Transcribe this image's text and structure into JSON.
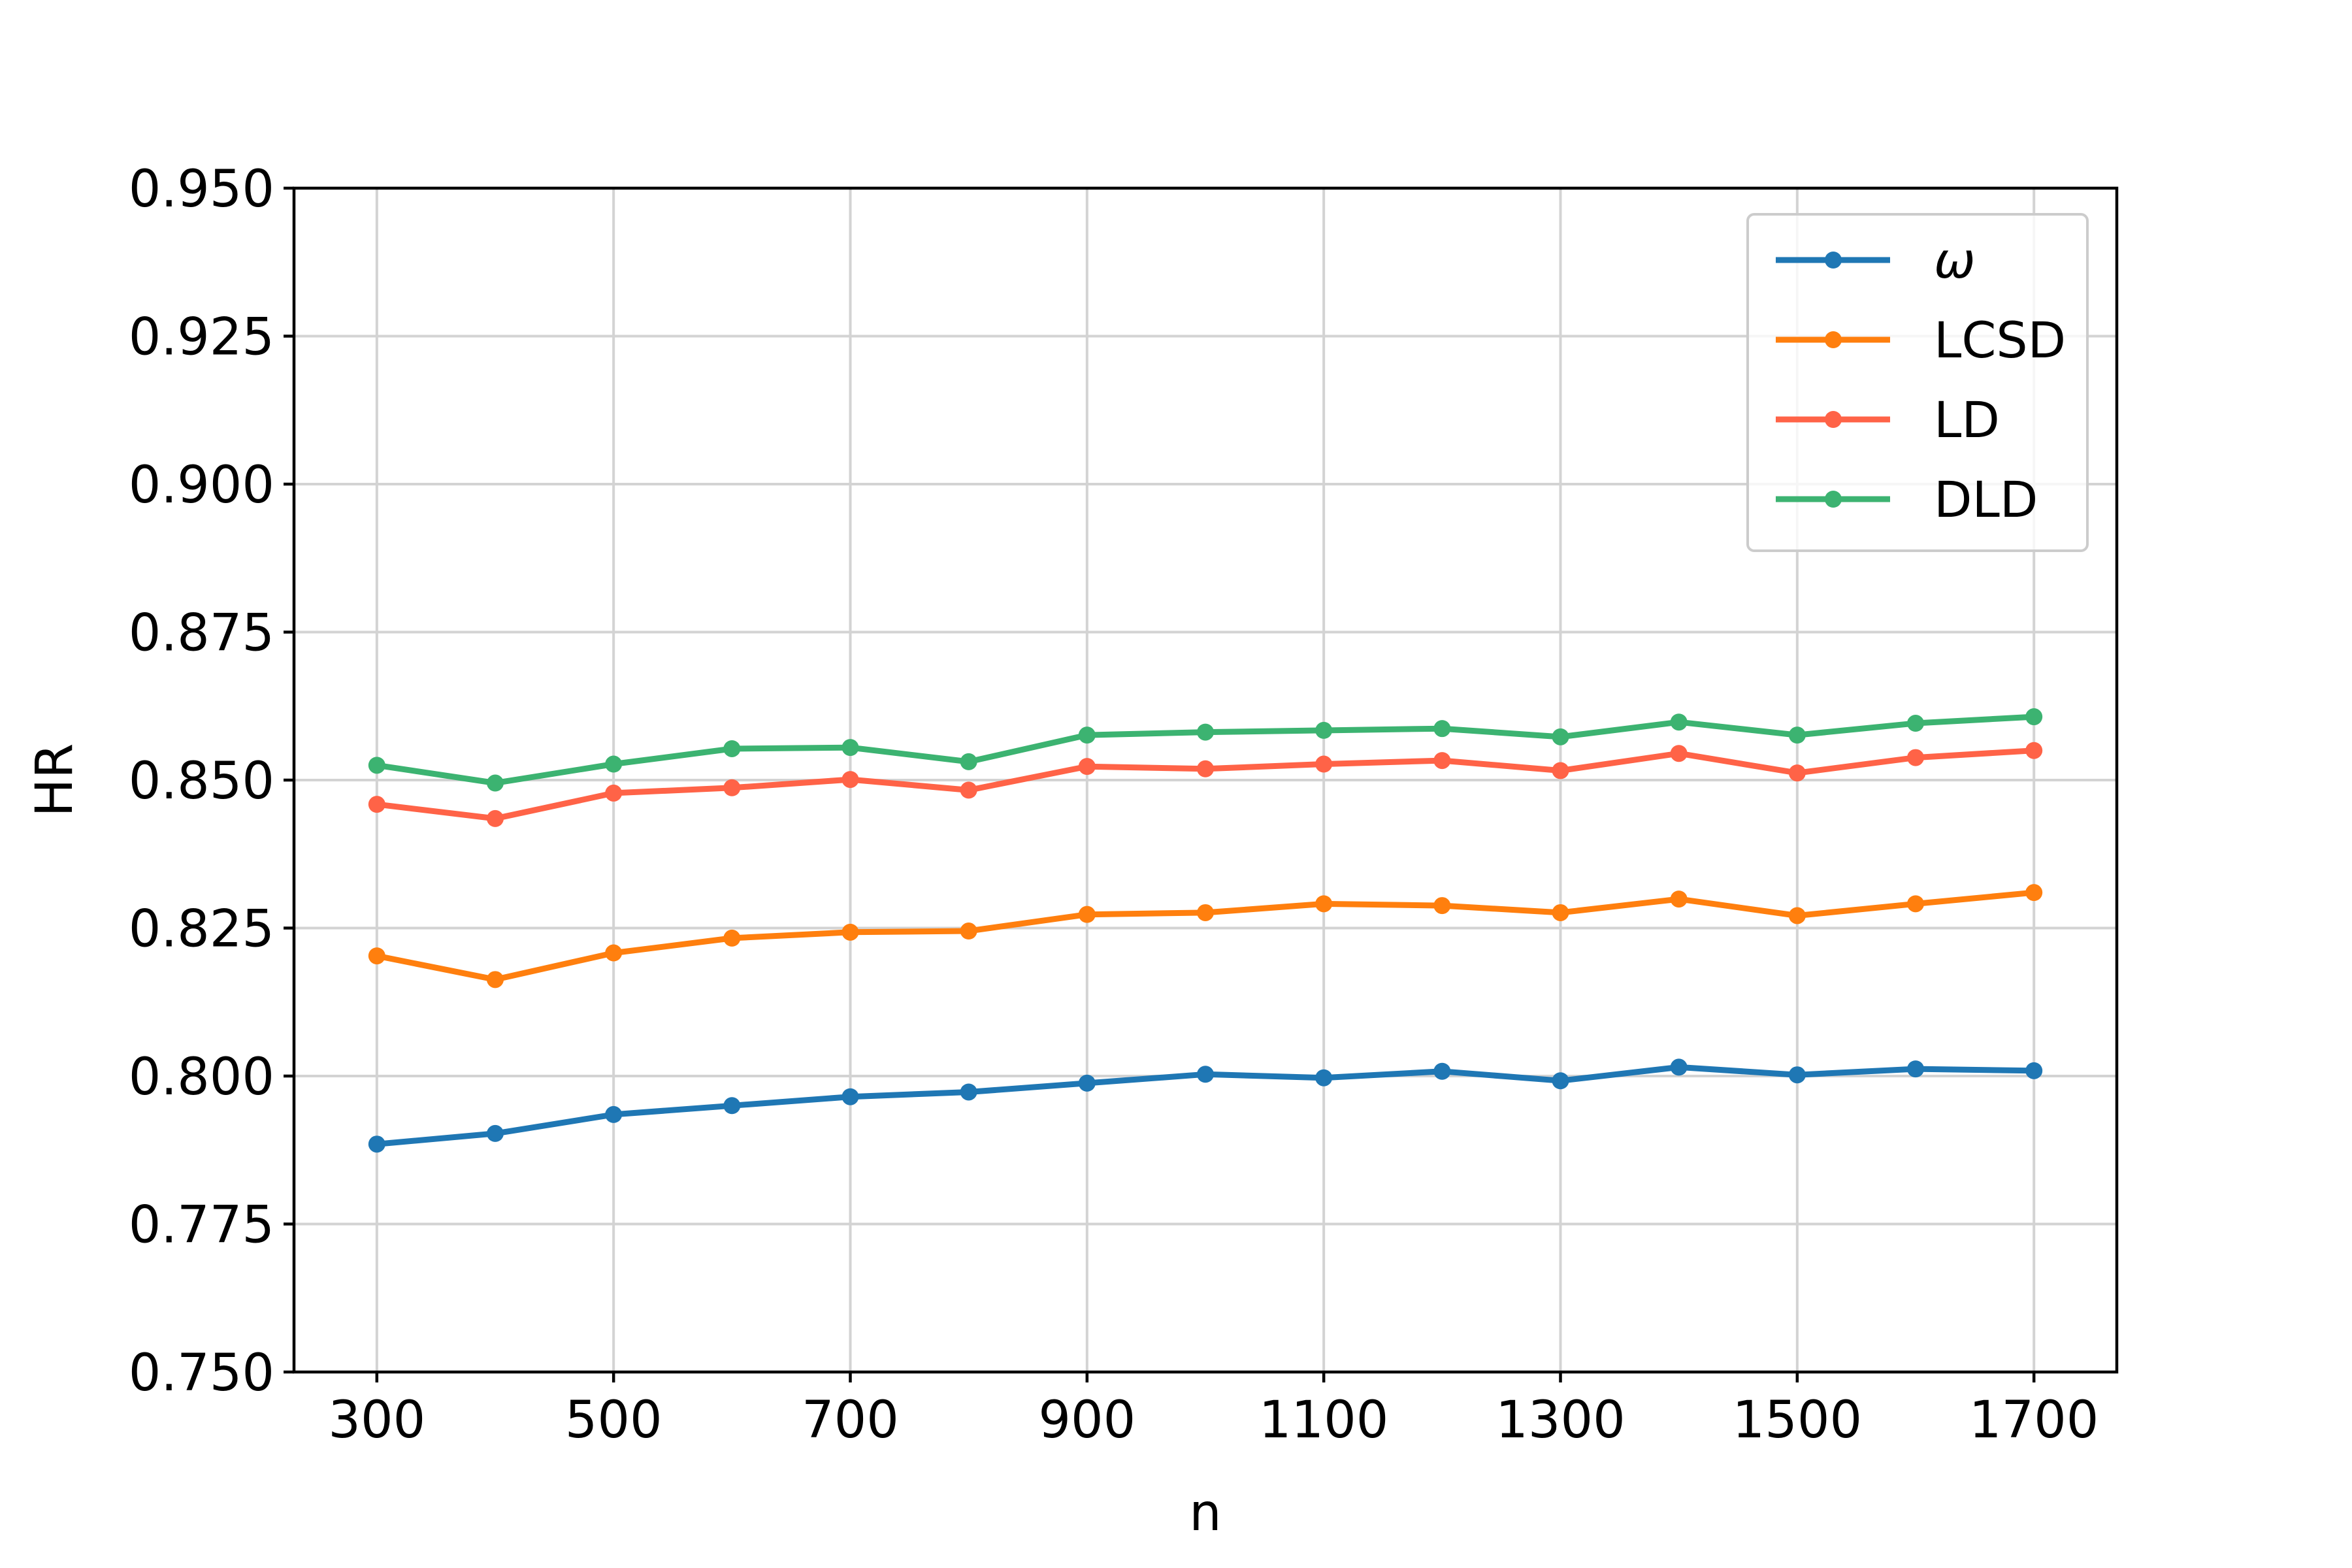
{
  "chart_data": {
    "type": "line",
    "xlabel": "n",
    "ylabel": "HR",
    "xlim": [
      230,
      1770
    ],
    "ylim": [
      0.75,
      0.95
    ],
    "x": [
      300,
      400,
      500,
      600,
      700,
      800,
      900,
      1000,
      1100,
      1200,
      1300,
      1400,
      1500,
      1600,
      1700
    ],
    "xticks": [
      300,
      500,
      700,
      900,
      1100,
      1300,
      1500,
      1700
    ],
    "xtick_labels": [
      "300",
      "500",
      "700",
      "900",
      "1100",
      "1300",
      "1500",
      "1700"
    ],
    "yticks": [
      0.75,
      0.775,
      0.8,
      0.825,
      0.85,
      0.875,
      0.9,
      0.925,
      0.95
    ],
    "ytick_labels": [
      "0.750",
      "0.775",
      "0.800",
      "0.825",
      "0.850",
      "0.875",
      "0.900",
      "0.925",
      "0.950"
    ],
    "grid": true,
    "legend_position": "top-right",
    "series": [
      {
        "name": "ω",
        "color": "#1f77b4",
        "values": [
          0.7885,
          0.7903,
          0.7935,
          0.795,
          0.7965,
          0.7973,
          0.7988,
          0.8003,
          0.7997,
          0.8008,
          0.7992,
          0.8015,
          0.8002,
          0.8012,
          0.8009
        ]
      },
      {
        "name": "LCSD",
        "color": "#ff7f0e",
        "values": [
          0.8203,
          0.8163,
          0.8208,
          0.8233,
          0.8243,
          0.8245,
          0.8273,
          0.8276,
          0.8291,
          0.8288,
          0.8276,
          0.8299,
          0.8271,
          0.8291,
          0.831
        ]
      },
      {
        "name": "LD",
        "color": "#ff6347",
        "values": [
          0.8459,
          0.8435,
          0.8478,
          0.8487,
          0.8501,
          0.8483,
          0.8523,
          0.8519,
          0.8527,
          0.8533,
          0.8516,
          0.8545,
          0.8512,
          0.8538,
          0.855
        ]
      },
      {
        "name": "DLD",
        "color": "#3cb371",
        "values": [
          0.8525,
          0.8495,
          0.8527,
          0.8553,
          0.8555,
          0.8531,
          0.8576,
          0.8581,
          0.8584,
          0.8587,
          0.8573,
          0.8598,
          0.8576,
          0.8596,
          0.8607
        ]
      }
    ]
  }
}
